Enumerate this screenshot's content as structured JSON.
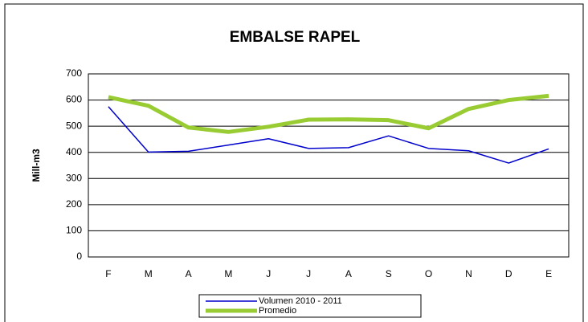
{
  "chart_data": {
    "type": "line",
    "title": "EMBALSE RAPEL",
    "y_label": "Mill-m3",
    "categories": [
      "F",
      "M",
      "A",
      "M",
      "J",
      "J",
      "A",
      "S",
      "O",
      "N",
      "D",
      "E"
    ],
    "series": [
      {
        "name": "Volumen 2010 - 2011",
        "color": "#0000cc",
        "values": [
          575,
          401,
          404,
          428,
          452,
          415,
          418,
          463,
          415,
          406,
          359,
          413
        ]
      },
      {
        "name": "Promedio",
        "color": "#99cc33",
        "values": [
          611,
          578,
          495,
          478,
          498,
          525,
          526,
          523,
          492,
          566,
          600,
          616
        ]
      }
    ],
    "ylim": [
      0,
      700
    ],
    "yticks": [
      0,
      100,
      200,
      300,
      400,
      500,
      600,
      700
    ],
    "grid": true
  }
}
